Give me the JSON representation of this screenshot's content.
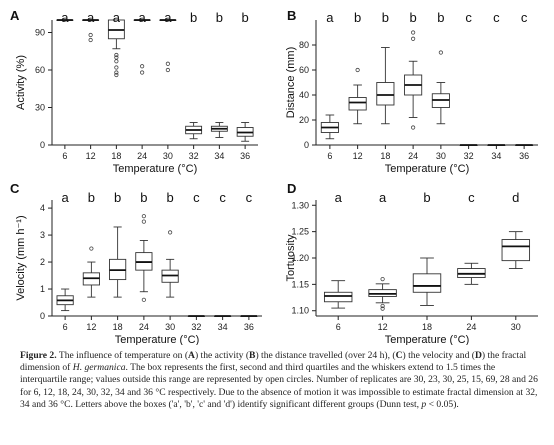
{
  "chart_data": [
    {
      "panel": "A",
      "type": "box",
      "categories": [
        "6",
        "12",
        "18",
        "24",
        "30",
        "32",
        "34",
        "36"
      ],
      "xlabel": "Temperature (°C)",
      "ylabel": "Activity (%)",
      "ylim": [
        0,
        100
      ],
      "yticks": [
        0,
        30,
        60,
        90
      ],
      "boxes": [
        {
          "min": 100,
          "q1": 100,
          "median": 100,
          "q3": 100,
          "max": 100,
          "outliers": []
        },
        {
          "min": 100,
          "q1": 100,
          "median": 100,
          "q3": 100,
          "max": 100,
          "outliers": [
            88,
            84
          ]
        },
        {
          "min": 77,
          "q1": 85,
          "median": 92,
          "q3": 100,
          "max": 100,
          "outliers": [
            72,
            70,
            67,
            62,
            58,
            56
          ]
        },
        {
          "min": 100,
          "q1": 100,
          "median": 100,
          "q3": 100,
          "max": 100,
          "outliers": [
            63,
            58
          ]
        },
        {
          "min": 100,
          "q1": 100,
          "median": 100,
          "q3": 100,
          "max": 100,
          "outliers": [
            65,
            60
          ]
        },
        {
          "min": 5,
          "q1": 9,
          "median": 12,
          "q3": 15,
          "max": 18,
          "outliers": []
        },
        {
          "min": 6,
          "q1": 11,
          "median": 13,
          "q3": 15,
          "max": 18,
          "outliers": []
        },
        {
          "min": 3,
          "q1": 7,
          "median": 10,
          "q3": 14,
          "max": 18,
          "outliers": []
        }
      ],
      "letters": [
        "a",
        "a",
        "a",
        "a",
        "a",
        "b",
        "b",
        "b"
      ]
    },
    {
      "panel": "B",
      "type": "box",
      "categories": [
        "6",
        "12",
        "18",
        "24",
        "30",
        "32",
        "34",
        "36"
      ],
      "xlabel": "Temperature (°C)",
      "ylabel": "Distance (mm)",
      "ylim": [
        0,
        100
      ],
      "yticks": [
        0,
        20,
        40,
        60,
        80
      ],
      "boxes": [
        {
          "min": 5,
          "q1": 10,
          "median": 14,
          "q3": 18,
          "max": 24,
          "outliers": []
        },
        {
          "min": 17,
          "q1": 28,
          "median": 34,
          "q3": 38,
          "max": 48,
          "outliers": [
            60
          ]
        },
        {
          "min": 17,
          "q1": 32,
          "median": 40,
          "q3": 50,
          "max": 78,
          "outliers": []
        },
        {
          "min": 22,
          "q1": 40,
          "median": 48,
          "q3": 56,
          "max": 67,
          "outliers": [
            85,
            90,
            14
          ]
        },
        {
          "min": 17,
          "q1": 30,
          "median": 36,
          "q3": 41,
          "max": 50,
          "outliers": [
            74
          ]
        },
        {
          "min": 0,
          "q1": 0,
          "median": 0,
          "q3": 0,
          "max": 0,
          "outliers": []
        },
        {
          "min": 0,
          "q1": 0,
          "median": 0,
          "q3": 0,
          "max": 0,
          "outliers": []
        },
        {
          "min": 0,
          "q1": 0,
          "median": 0,
          "q3": 0,
          "max": 0,
          "outliers": []
        }
      ],
      "letters": [
        "a",
        "b",
        "b",
        "b",
        "b",
        "c",
        "c",
        "c"
      ]
    },
    {
      "panel": "C",
      "type": "box",
      "categories": [
        "6",
        "12",
        "18",
        "24",
        "30",
        "32",
        "34",
        "36"
      ],
      "xlabel": "Temperature (°C)",
      "ylabel": "Velocity (mm h⁻¹)",
      "ylim": [
        0,
        4.3
      ],
      "yticks": [
        0,
        1,
        2,
        3,
        4
      ],
      "boxes": [
        {
          "min": 0.2,
          "q1": 0.42,
          "median": 0.58,
          "q3": 0.75,
          "max": 1.0,
          "outliers": []
        },
        {
          "min": 0.7,
          "q1": 1.15,
          "median": 1.4,
          "q3": 1.6,
          "max": 2.0,
          "outliers": [
            2.5
          ]
        },
        {
          "min": 0.7,
          "q1": 1.35,
          "median": 1.7,
          "q3": 2.1,
          "max": 3.3,
          "outliers": []
        },
        {
          "min": 0.9,
          "q1": 1.7,
          "median": 2.0,
          "q3": 2.35,
          "max": 2.8,
          "outliers": [
            3.5,
            3.7,
            0.6
          ]
        },
        {
          "min": 0.7,
          "q1": 1.25,
          "median": 1.5,
          "q3": 1.7,
          "max": 2.1,
          "outliers": [
            3.1
          ]
        },
        {
          "min": 0,
          "q1": 0,
          "median": 0,
          "q3": 0,
          "max": 0,
          "outliers": []
        },
        {
          "min": 0,
          "q1": 0,
          "median": 0,
          "q3": 0,
          "max": 0,
          "outliers": []
        },
        {
          "min": 0,
          "q1": 0,
          "median": 0,
          "q3": 0,
          "max": 0,
          "outliers": []
        }
      ],
      "letters": [
        "a",
        "b",
        "b",
        "b",
        "b",
        "c",
        "c",
        "c"
      ]
    },
    {
      "panel": "D",
      "type": "box",
      "categories": [
        "6",
        "12",
        "18",
        "24",
        "30"
      ],
      "xlabel": "Temperature (°C)",
      "ylabel": "Tortuosity",
      "ylim": [
        1.09,
        1.31
      ],
      "yticks": [
        1.1,
        1.15,
        1.2,
        1.25,
        1.3
      ],
      "ytick_labels": [
        "1.10",
        "1.15",
        "1.20",
        "1.25",
        "1.30"
      ],
      "boxes": [
        {
          "min": 1.105,
          "q1": 1.117,
          "median": 1.128,
          "q3": 1.135,
          "max": 1.157,
          "outliers": []
        },
        {
          "min": 1.115,
          "q1": 1.127,
          "median": 1.132,
          "q3": 1.14,
          "max": 1.151,
          "outliers": [
            1.16,
            1.109,
            1.104
          ]
        },
        {
          "min": 1.11,
          "q1": 1.135,
          "median": 1.147,
          "q3": 1.17,
          "max": 1.2,
          "outliers": []
        },
        {
          "min": 1.15,
          "q1": 1.163,
          "median": 1.17,
          "q3": 1.18,
          "max": 1.19,
          "outliers": []
        },
        {
          "min": 1.18,
          "q1": 1.195,
          "median": 1.222,
          "q3": 1.235,
          "max": 1.25,
          "outliers": []
        }
      ],
      "letters": [
        "a",
        "a",
        "b",
        "c",
        "d"
      ]
    }
  ],
  "caption": {
    "label": "Figure 2.",
    "parts": [
      {
        "t": "  The influence of temperature on (",
        "s": ""
      },
      {
        "t": "A",
        "s": "bold"
      },
      {
        "t": ") the activity (",
        "s": ""
      },
      {
        "t": "B",
        "s": "bold"
      },
      {
        "t": ") the distance travelled (over 24 h), (",
        "s": ""
      },
      {
        "t": "C",
        "s": "bold"
      },
      {
        "t": ") the velocity and (",
        "s": ""
      },
      {
        "t": "D",
        "s": "bold"
      },
      {
        "t": ") the fractal dimension of ",
        "s": ""
      },
      {
        "t": "H. germanica",
        "s": "ital"
      },
      {
        "t": ". The box represents the first, second and third quartiles and the whiskers extend to 1.5 times the interquartile range; values outside this range are represented by open circles. Number of replicates are 30, 23, 30, 25, 15, 69, 28 and 26 for 6, 12, 18, 24, 30, 32, 34 and 36 °C respectively. Due to the absence of motion it was impossible to estimate fractal dimension at 32, 34 and 36 °C. Letters above the boxes ('a', 'b', 'c' and 'd') identify significant different groups (Dunn test, ",
        "s": ""
      },
      {
        "t": "p",
        "s": "ital"
      },
      {
        "t": " < 0.05).",
        "s": ""
      }
    ]
  }
}
